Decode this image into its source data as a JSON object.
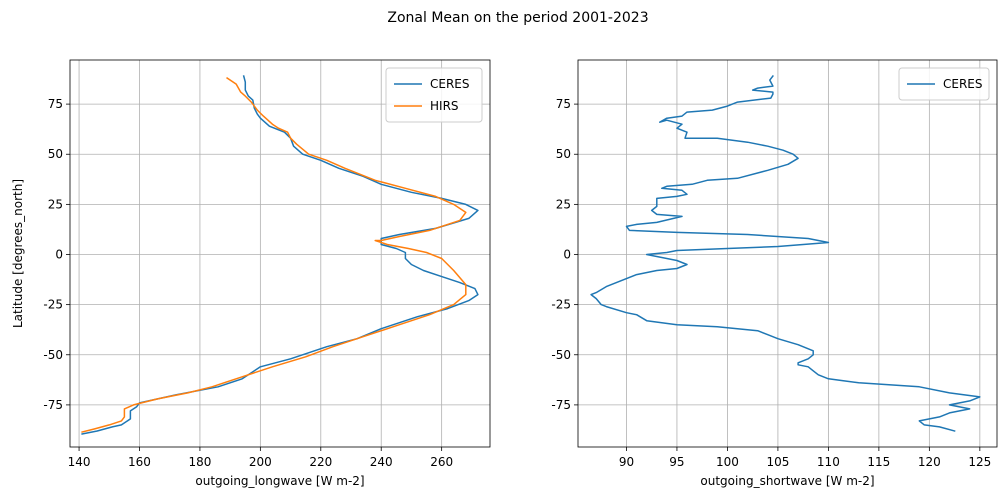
{
  "figure": {
    "suptitle": "Zonal Mean on the period 2001-2023"
  },
  "chart_data": [
    {
      "type": "line",
      "xlabel": "outgoing_longwave [W m-2]",
      "ylabel": "Latitude [degrees_north]",
      "xlim": [
        137,
        276
      ],
      "ylim": [
        -96,
        97
      ],
      "xticks": [
        140,
        160,
        180,
        200,
        220,
        240,
        260
      ],
      "yticks": [
        75,
        50,
        25,
        0,
        -25,
        -50,
        -75
      ],
      "grid": true,
      "legend_position": "upper right",
      "colors": {
        "CERES": "#1f77b4",
        "HIRS": "#ff7f0e"
      },
      "series": [
        {
          "name": "CERES",
          "points": [
            [
              194.5,
              89
            ],
            [
              195,
              86
            ],
            [
              195,
              82
            ],
            [
              196,
              79
            ],
            [
              197.5,
              77
            ],
            [
              198,
              73
            ],
            [
              199,
              70
            ],
            [
              200,
              68
            ],
            [
              203,
              64
            ],
            [
              208,
              61
            ],
            [
              210,
              58
            ],
            [
              211,
              54
            ],
            [
              214,
              50
            ],
            [
              220,
              47
            ],
            [
              226,
              43
            ],
            [
              234,
              39
            ],
            [
              240,
              35
            ],
            [
              250,
              31
            ],
            [
              260,
              28
            ],
            [
              268,
              25
            ],
            [
              272,
              22
            ],
            [
              269,
              18
            ],
            [
              258,
              13
            ],
            [
              246,
              10
            ],
            [
              240,
              8
            ],
            [
              240,
              5
            ],
            [
              245,
              3
            ],
            [
              248,
              1
            ],
            [
              248,
              -2
            ],
            [
              250,
              -5
            ],
            [
              254,
              -8
            ],
            [
              260,
              -11
            ],
            [
              266,
              -14
            ],
            [
              271,
              -17
            ],
            [
              272,
              -20
            ],
            [
              269,
              -23
            ],
            [
              262,
              -27
            ],
            [
              252,
              -31
            ],
            [
              240,
              -37
            ],
            [
              232,
              -42
            ],
            [
              222,
              -46
            ],
            [
              210,
              -52
            ],
            [
              200,
              -56
            ],
            [
              194,
              -62
            ],
            [
              186,
              -66
            ],
            [
              172,
              -70
            ],
            [
              160,
              -74
            ],
            [
              159,
              -76
            ],
            [
              157,
              -78
            ],
            [
              157,
              -82
            ],
            [
              154,
              -85
            ],
            [
              151,
              -86
            ],
            [
              146,
              -88
            ],
            [
              141,
              -89.5
            ]
          ]
        },
        {
          "name": "HIRS",
          "points": [
            [
              189,
              88
            ],
            [
              192,
              85
            ],
            [
              193.5,
              81
            ],
            [
              195,
              79
            ],
            [
              197,
              76
            ],
            [
              199,
              72
            ],
            [
              201,
              69
            ],
            [
              204,
              65
            ],
            [
              206,
              63
            ],
            [
              209,
              61
            ],
            [
              210,
              58
            ],
            [
              212,
              55
            ],
            [
              216,
              50
            ],
            [
              222,
              47
            ],
            [
              228,
              43
            ],
            [
              238,
              37
            ],
            [
              248,
              33
            ],
            [
              258,
              29
            ],
            [
              264,
              25
            ],
            [
              268,
              21
            ],
            [
              266,
              17
            ],
            [
              256,
              12
            ],
            [
              246,
              9
            ],
            [
              240,
              7
            ],
            [
              238,
              7
            ],
            [
              242,
              5
            ],
            [
              249,
              3
            ],
            [
              255,
              1
            ],
            [
              260,
              -2
            ],
            [
              264,
              -8
            ],
            [
              268,
              -15
            ],
            [
              268,
              -20
            ],
            [
              264,
              -25
            ],
            [
              256,
              -30
            ],
            [
              246,
              -35
            ],
            [
              234,
              -41
            ],
            [
              224,
              -46
            ],
            [
              215,
              -51
            ],
            [
              204,
              -56
            ],
            [
              194,
              -61
            ],
            [
              184,
              -66
            ],
            [
              176,
              -69
            ],
            [
              166,
              -72
            ],
            [
              158,
              -75
            ],
            [
              155,
              -77
            ],
            [
              155,
              -81
            ],
            [
              154,
              -83
            ],
            [
              150,
              -85
            ],
            [
              145,
              -87
            ],
            [
              141,
              -88.5
            ]
          ]
        }
      ]
    },
    {
      "type": "line",
      "xlabel": "outgoing_shortwave [W m-2]",
      "ylabel": "",
      "xlim": [
        85.2,
        126.7
      ],
      "ylim": [
        -96,
        97
      ],
      "xticks": [
        90,
        95,
        100,
        105,
        110,
        115,
        120,
        125
      ],
      "yticks": [
        75,
        50,
        25,
        0,
        -25,
        -50,
        -75
      ],
      "grid": true,
      "legend_position": "upper right",
      "colors": {
        "CERES": "#1f77b4"
      },
      "series": [
        {
          "name": "CERES",
          "points": [
            [
              104.5,
              89
            ],
            [
              104.2,
              87
            ],
            [
              104.5,
              84
            ],
            [
              103,
              83
            ],
            [
              102.5,
              82
            ],
            [
              104.5,
              81
            ],
            [
              104.5,
              80
            ],
            [
              104.3,
              78
            ],
            [
              101,
              76
            ],
            [
              100,
              74
            ],
            [
              98.5,
              72
            ],
            [
              96,
              71
            ],
            [
              95.5,
              69
            ],
            [
              94,
              68
            ],
            [
              93.3,
              66
            ],
            [
              94,
              67
            ],
            [
              95.5,
              65
            ],
            [
              95,
              63
            ],
            [
              96,
              61
            ],
            [
              95.8,
              58
            ],
            [
              99,
              58
            ],
            [
              102,
              56
            ],
            [
              104,
              54
            ],
            [
              105.5,
              52
            ],
            [
              106.5,
              50
            ],
            [
              107,
              48
            ],
            [
              106,
              45
            ],
            [
              104,
              42
            ],
            [
              101,
              38
            ],
            [
              98,
              37
            ],
            [
              96.5,
              35
            ],
            [
              94,
              34
            ],
            [
              93.5,
              33
            ],
            [
              95.5,
              32
            ],
            [
              96,
              30
            ],
            [
              95,
              29
            ],
            [
              93,
              28
            ],
            [
              93,
              24
            ],
            [
              92.5,
              22
            ],
            [
              93,
              20
            ],
            [
              95.5,
              19
            ],
            [
              93,
              16
            ],
            [
              91,
              15
            ],
            [
              90,
              14
            ],
            [
              90.3,
              12
            ],
            [
              95,
              11
            ],
            [
              102,
              10
            ],
            [
              108,
              8
            ],
            [
              110,
              6
            ],
            [
              105,
              4
            ],
            [
              100,
              3
            ],
            [
              95,
              2
            ],
            [
              94,
              1
            ],
            [
              92,
              0
            ],
            [
              95,
              -3
            ],
            [
              96,
              -5
            ],
            [
              95,
              -7
            ],
            [
              93,
              -8
            ],
            [
              91,
              -10
            ],
            [
              89,
              -14
            ],
            [
              88,
              -16
            ],
            [
              87,
              -19
            ],
            [
              86.5,
              -20
            ],
            [
              87,
              -22
            ],
            [
              87.5,
              -25
            ],
            [
              88,
              -26
            ],
            [
              90,
              -29
            ],
            [
              91,
              -30
            ],
            [
              92,
              -33
            ],
            [
              95,
              -35
            ],
            [
              99,
              -36
            ],
            [
              103,
              -38
            ],
            [
              104,
              -40
            ],
            [
              105,
              -42
            ],
            [
              107,
              -45
            ],
            [
              108.5,
              -48
            ],
            [
              108.5,
              -50
            ],
            [
              108,
              -52
            ],
            [
              107,
              -54
            ],
            [
              107,
              -55
            ],
            [
              108,
              -56
            ],
            [
              108.5,
              -58
            ],
            [
              109,
              -60
            ],
            [
              110,
              -62
            ],
            [
              113,
              -64
            ],
            [
              116,
              -65
            ],
            [
              119,
              -66
            ],
            [
              122,
              -69
            ],
            [
              125,
              -71
            ],
            [
              124,
              -73
            ],
            [
              122,
              -75
            ],
            [
              124,
              -77
            ],
            [
              122,
              -79
            ],
            [
              121,
              -81
            ],
            [
              120,
              -82
            ],
            [
              119,
              -83
            ],
            [
              119.5,
              -85
            ],
            [
              121,
              -86
            ],
            [
              122.5,
              -88
            ]
          ]
        }
      ]
    }
  ]
}
